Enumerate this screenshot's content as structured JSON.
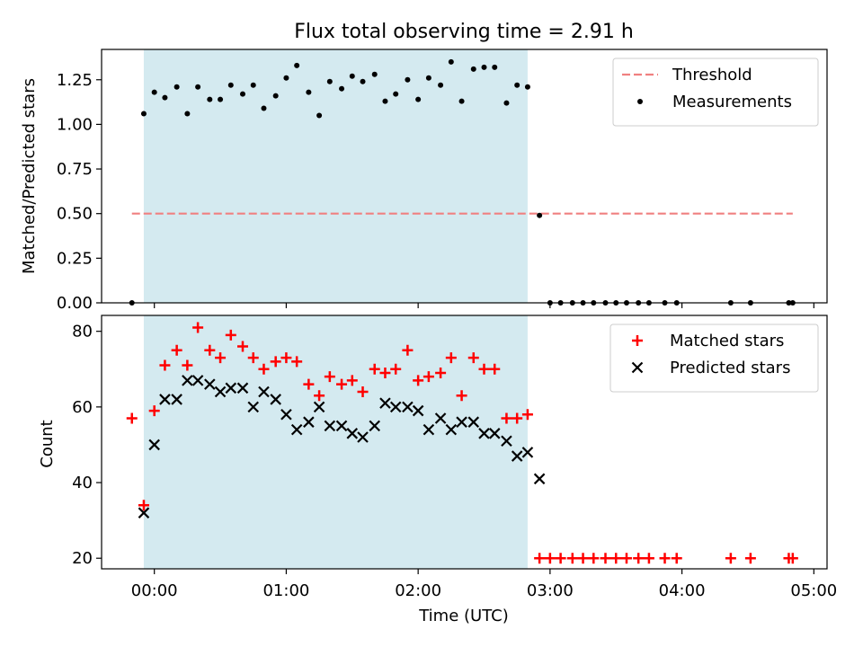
{
  "chart_data": {
    "title": "Flux total observing time = 2.91 h",
    "xlabel": "Time (UTC)",
    "x_unit": "hours (UTC)",
    "xlim": [
      -0.4,
      5.1
    ],
    "xticks": [
      0,
      1,
      2,
      3,
      4,
      5
    ],
    "xticklabels": [
      "00:00",
      "01:00",
      "02:00",
      "03:00",
      "04:00",
      "05:00"
    ],
    "highlight_span": [
      -0.08,
      2.83
    ],
    "highlight_color": "#d4eaf0",
    "panels": [
      {
        "type": "scatter",
        "ylabel": "Matched/Predicted stars",
        "ylim": [
          0,
          1.42
        ],
        "yticks": [
          0.0,
          0.25,
          0.5,
          0.75,
          1.0,
          1.25
        ],
        "yticklabels": [
          "0.00",
          "0.25",
          "0.50",
          "0.75",
          "1.00",
          "1.25"
        ],
        "legend_position": "top-right",
        "threshold": {
          "name": "Threshold",
          "y": 0.5,
          "x_range": [
            -0.17,
            4.84
          ],
          "color": "#f08080"
        },
        "series": [
          {
            "name": "Measurements",
            "marker": "dot",
            "color": "#000000",
            "points": [
              [
                -0.17,
                0.0
              ],
              [
                -0.08,
                1.06
              ],
              [
                0.0,
                1.18
              ],
              [
                0.08,
                1.15
              ],
              [
                0.17,
                1.21
              ],
              [
                0.25,
                1.06
              ],
              [
                0.33,
                1.21
              ],
              [
                0.42,
                1.14
              ],
              [
                0.5,
                1.14
              ],
              [
                0.58,
                1.22
              ],
              [
                0.67,
                1.17
              ],
              [
                0.75,
                1.22
              ],
              [
                0.83,
                1.09
              ],
              [
                0.92,
                1.16
              ],
              [
                1.0,
                1.26
              ],
              [
                1.08,
                1.33
              ],
              [
                1.17,
                1.18
              ],
              [
                1.25,
                1.05
              ],
              [
                1.33,
                1.24
              ],
              [
                1.42,
                1.2
              ],
              [
                1.5,
                1.27
              ],
              [
                1.58,
                1.24
              ],
              [
                1.67,
                1.28
              ],
              [
                1.75,
                1.13
              ],
              [
                1.83,
                1.17
              ],
              [
                1.92,
                1.25
              ],
              [
                2.0,
                1.14
              ],
              [
                2.08,
                1.26
              ],
              [
                2.17,
                1.22
              ],
              [
                2.25,
                1.35
              ],
              [
                2.33,
                1.13
              ],
              [
                2.42,
                1.31
              ],
              [
                2.5,
                1.32
              ],
              [
                2.58,
                1.32
              ],
              [
                2.67,
                1.12
              ],
              [
                2.75,
                1.22
              ],
              [
                2.83,
                1.21
              ],
              [
                2.92,
                0.49
              ],
              [
                3.0,
                0.0
              ],
              [
                3.08,
                0.0
              ],
              [
                3.17,
                0.0
              ],
              [
                3.25,
                0.0
              ],
              [
                3.33,
                0.0
              ],
              [
                3.42,
                0.0
              ],
              [
                3.5,
                0.0
              ],
              [
                3.58,
                0.0
              ],
              [
                3.67,
                0.0
              ],
              [
                3.75,
                0.0
              ],
              [
                3.87,
                0.0
              ],
              [
                3.96,
                0.0
              ],
              [
                4.37,
                0.0
              ],
              [
                4.52,
                0.0
              ],
              [
                4.81,
                0.0
              ],
              [
                4.84,
                0.0
              ]
            ]
          }
        ]
      },
      {
        "type": "scatter",
        "ylabel": "Count",
        "ylim": [
          17.2,
          84.2
        ],
        "yticks": [
          20,
          40,
          60,
          80
        ],
        "yticklabels": [
          "20",
          "40",
          "60",
          "80"
        ],
        "legend_position": "top-right",
        "series": [
          {
            "name": "Matched stars",
            "marker": "plus",
            "color": "#ff0000",
            "points": [
              [
                -0.17,
                57
              ],
              [
                -0.08,
                34
              ],
              [
                0.0,
                59
              ],
              [
                0.08,
                71
              ],
              [
                0.17,
                75
              ],
              [
                0.25,
                71
              ],
              [
                0.33,
                81
              ],
              [
                0.42,
                75
              ],
              [
                0.5,
                73
              ],
              [
                0.58,
                79
              ],
              [
                0.67,
                76
              ],
              [
                0.75,
                73
              ],
              [
                0.83,
                70
              ],
              [
                0.92,
                72
              ],
              [
                1.0,
                73
              ],
              [
                1.08,
                72
              ],
              [
                1.17,
                66
              ],
              [
                1.25,
                63
              ],
              [
                1.33,
                68
              ],
              [
                1.42,
                66
              ],
              [
                1.5,
                67
              ],
              [
                1.58,
                64
              ],
              [
                1.67,
                70
              ],
              [
                1.75,
                69
              ],
              [
                1.83,
                70
              ],
              [
                1.92,
                75
              ],
              [
                2.0,
                67
              ],
              [
                2.08,
                68
              ],
              [
                2.17,
                69
              ],
              [
                2.25,
                73
              ],
              [
                2.33,
                63
              ],
              [
                2.42,
                73
              ],
              [
                2.5,
                70
              ],
              [
                2.58,
                70
              ],
              [
                2.67,
                57
              ],
              [
                2.75,
                57
              ],
              [
                2.83,
                58
              ],
              [
                2.92,
                20
              ],
              [
                3.0,
                20
              ],
              [
                3.08,
                20
              ],
              [
                3.17,
                20
              ],
              [
                3.25,
                20
              ],
              [
                3.33,
                20
              ],
              [
                3.42,
                20
              ],
              [
                3.5,
                20
              ],
              [
                3.58,
                20
              ],
              [
                3.67,
                20
              ],
              [
                3.75,
                20
              ],
              [
                3.87,
                20
              ],
              [
                3.96,
                20
              ],
              [
                4.37,
                20
              ],
              [
                4.52,
                20
              ],
              [
                4.81,
                20
              ],
              [
                4.84,
                20
              ]
            ]
          },
          {
            "name": "Predicted stars",
            "marker": "x",
            "color": "#000000",
            "points": [
              [
                -0.08,
                32
              ],
              [
                0.0,
                50
              ],
              [
                0.08,
                62
              ],
              [
                0.17,
                62
              ],
              [
                0.25,
                67
              ],
              [
                0.33,
                67
              ],
              [
                0.42,
                66
              ],
              [
                0.5,
                64
              ],
              [
                0.58,
                65
              ],
              [
                0.67,
                65
              ],
              [
                0.75,
                60
              ],
              [
                0.83,
                64
              ],
              [
                0.92,
                62
              ],
              [
                1.0,
                58
              ],
              [
                1.08,
                54
              ],
              [
                1.17,
                56
              ],
              [
                1.25,
                60
              ],
              [
                1.33,
                55
              ],
              [
                1.42,
                55
              ],
              [
                1.5,
                53
              ],
              [
                1.58,
                52
              ],
              [
                1.67,
                55
              ],
              [
                1.75,
                61
              ],
              [
                1.83,
                60
              ],
              [
                1.92,
                60
              ],
              [
                2.0,
                59
              ],
              [
                2.08,
                54
              ],
              [
                2.17,
                57
              ],
              [
                2.25,
                54
              ],
              [
                2.33,
                56
              ],
              [
                2.42,
                56
              ],
              [
                2.5,
                53
              ],
              [
                2.58,
                53
              ],
              [
                2.67,
                51
              ],
              [
                2.75,
                47
              ],
              [
                2.83,
                48
              ],
              [
                2.92,
                41
              ]
            ]
          }
        ]
      }
    ]
  }
}
